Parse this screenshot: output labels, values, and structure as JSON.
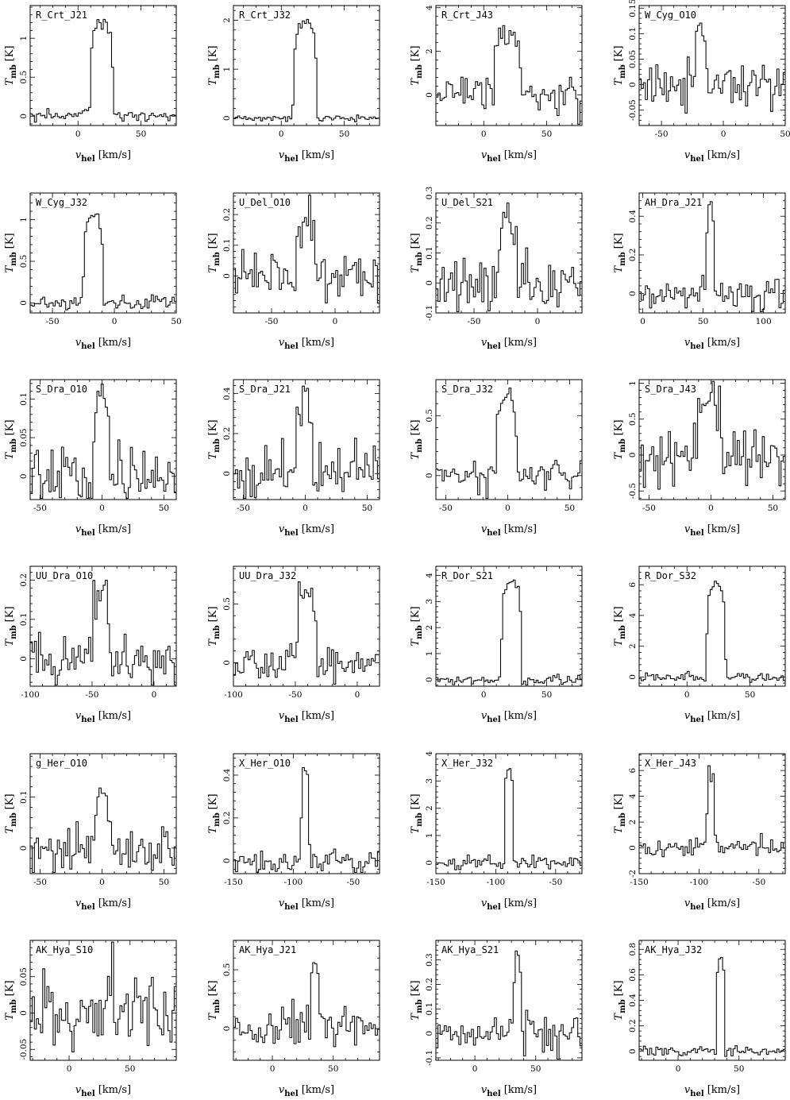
{
  "figure": {
    "xlabel": "v",
    "xlabel_sub": "hel",
    "xlabel_unit": "[km/s]",
    "ylabel": "T",
    "ylabel_sub": "mb",
    "ylabel_unit": "[K]"
  },
  "chart_data": [
    {
      "type": "line",
      "title": "R_Crt_J21",
      "xlim": [
        -38,
        78
      ],
      "ylim": [
        -0.12,
        1.42
      ],
      "xticks": [
        0,
        50
      ],
      "yticks": [
        0,
        0.5,
        1
      ],
      "profile": {
        "center": 19,
        "width": 16,
        "peak": 1.2,
        "rms": 0.04,
        "seed": 1
      }
    },
    {
      "type": "line",
      "title": "R_Crt_J32",
      "xlim": [
        -38,
        78
      ],
      "ylim": [
        -0.15,
        2.3
      ],
      "xticks": [
        0,
        50
      ],
      "yticks": [
        0,
        1,
        2
      ],
      "profile": {
        "center": 19,
        "width": 16,
        "peak": 2.0,
        "rms": 0.04,
        "seed": 2
      }
    },
    {
      "type": "line",
      "title": "R_Crt_J43",
      "xlim": [
        -38,
        78
      ],
      "ylim": [
        -1.4,
        4.1
      ],
      "xticks": [
        0,
        50
      ],
      "yticks": [
        0,
        2,
        4
      ],
      "profile": {
        "center": 19,
        "width": 18,
        "peak": 2.9,
        "rms": 0.45,
        "seed": 3
      }
    },
    {
      "type": "line",
      "title": "W_Cyg_O10",
      "xlim": [
        -68,
        50
      ],
      "ylim": [
        -0.08,
        0.155
      ],
      "xticks": [
        -50,
        0,
        50
      ],
      "yticks": [
        -0.05,
        0,
        0.05,
        0.1,
        0.15
      ],
      "profile": {
        "center": -18,
        "width": 9,
        "peak": 0.1,
        "rms": 0.022,
        "seed": 4
      }
    },
    {
      "type": "line",
      "title": "W_Cyg_J32",
      "xlim": [
        -68,
        50
      ],
      "ylim": [
        -0.12,
        1.32
      ],
      "xticks": [
        -50,
        0,
        50
      ],
      "yticks": [
        0,
        0.5,
        1
      ],
      "profile": {
        "center": -17,
        "width": 14,
        "peak": 1.05,
        "rms": 0.04,
        "seed": 5
      }
    },
    {
      "type": "line",
      "title": "U_Del_O10",
      "xlim": [
        -80,
        35
      ],
      "ylim": [
        -0.12,
        0.27
      ],
      "xticks": [
        -50,
        0
      ],
      "yticks": [
        0,
        0.1,
        0.2
      ],
      "profile": {
        "center": -23,
        "width": 13,
        "peak": 0.19,
        "rms": 0.04,
        "seed": 6
      }
    },
    {
      "type": "line",
      "title": "U_Del_S21",
      "xlim": [
        -80,
        35
      ],
      "ylim": [
        -0.1,
        0.3
      ],
      "xticks": [
        -50,
        0
      ],
      "yticks": [
        -0.1,
        0,
        0.1,
        0.2,
        0.3
      ],
      "profile": {
        "center": -23,
        "width": 13,
        "peak": 0.22,
        "rms": 0.045,
        "seed": 7
      }
    },
    {
      "type": "line",
      "title": "AH_Dra_J21",
      "xlim": [
        -3,
        118
      ],
      "ylim": [
        -0.1,
        0.52
      ],
      "xticks": [
        0,
        50,
        100
      ],
      "yticks": [
        0,
        0.2,
        0.4
      ],
      "profile": {
        "center": 56,
        "width": 6,
        "peak": 0.42,
        "rms": 0.045,
        "seed": 8
      }
    },
    {
      "type": "line",
      "title": "S_Dra_O10",
      "xlim": [
        -58,
        60
      ],
      "ylim": [
        -0.03,
        0.125
      ],
      "xticks": [
        -50,
        0,
        50
      ],
      "yticks": [
        0,
        0.05,
        0.1
      ],
      "profile": {
        "center": -1,
        "width": 12,
        "peak": 0.09,
        "rms": 0.022,
        "seed": 9
      }
    },
    {
      "type": "line",
      "title": "S_Dra_J21",
      "xlim": [
        -58,
        60
      ],
      "ylim": [
        -0.13,
        0.47
      ],
      "xticks": [
        -50,
        0,
        50
      ],
      "yticks": [
        0,
        0.2,
        0.4
      ],
      "profile": {
        "center": -1,
        "width": 12,
        "peak": 0.33,
        "rms": 0.07,
        "seed": 10
      }
    },
    {
      "type": "line",
      "title": "S_Dra_J32",
      "xlim": [
        -58,
        60
      ],
      "ylim": [
        -0.2,
        0.8
      ],
      "xticks": [
        -50,
        0,
        50
      ],
      "yticks": [
        0,
        0.5
      ],
      "profile": {
        "center": -1,
        "width": 14,
        "peak": 0.62,
        "rms": 0.07,
        "seed": 11
      }
    },
    {
      "type": "line",
      "title": "S_Dra_J43",
      "xlim": [
        -58,
        60
      ],
      "ylim": [
        -0.62,
        1.05
      ],
      "xticks": [
        -50,
        0,
        50
      ],
      "yticks": [
        -0.5,
        0,
        0.5,
        1
      ],
      "profile": {
        "center": -1,
        "width": 16,
        "peak": 0.78,
        "rms": 0.18,
        "seed": 12
      }
    },
    {
      "type": "line",
      "title": "UU_Dra_O10",
      "xlim": [
        -100,
        18
      ],
      "ylim": [
        -0.07,
        0.235
      ],
      "xticks": [
        -100,
        -50,
        0
      ],
      "yticks": [
        0,
        0.1,
        0.2
      ],
      "profile": {
        "center": -43,
        "width": 12,
        "peak": 0.17,
        "rms": 0.03,
        "seed": 13
      }
    },
    {
      "type": "line",
      "title": "UU_Dra_J32",
      "xlim": [
        -100,
        18
      ],
      "ylim": [
        -0.2,
        0.82
      ],
      "xticks": [
        -100,
        -50,
        0
      ],
      "yticks": [
        0,
        0.5
      ],
      "profile": {
        "center": -41,
        "width": 14,
        "peak": 0.6,
        "rms": 0.08,
        "seed": 14
      }
    },
    {
      "type": "line",
      "title": "R_Dor_S21",
      "xlim": [
        -38,
        78
      ],
      "ylim": [
        -0.25,
        4.35
      ],
      "xticks": [
        0,
        50
      ],
      "yticks": [
        0,
        1,
        2,
        3,
        4
      ],
      "profile": {
        "center": 22,
        "width": 14,
        "peak": 3.8,
        "rms": 0.08,
        "seed": 15
      }
    },
    {
      "type": "line",
      "title": "R_Dor_S32",
      "xlim": [
        -38,
        78
      ],
      "ylim": [
        -0.6,
        7.2
      ],
      "xticks": [
        0,
        50
      ],
      "yticks": [
        0,
        2,
        4,
        6
      ],
      "profile": {
        "center": 23,
        "width": 13,
        "peak": 6.1,
        "rms": 0.15,
        "seed": 16
      }
    },
    {
      "type": "line",
      "title": "g_Her_O10",
      "xlim": [
        -58,
        60
      ],
      "ylim": [
        -0.05,
        0.185
      ],
      "xticks": [
        -50,
        0,
        50
      ],
      "yticks": [
        0,
        0.1
      ],
      "profile": {
        "center": 1,
        "width": 10,
        "peak": 0.13,
        "rms": 0.025,
        "seed": 17
      }
    },
    {
      "type": "line",
      "title": "X_Her_O10",
      "xlim": [
        -150,
        -28
      ],
      "ylim": [
        -0.06,
        0.5
      ],
      "xticks": [
        -150,
        -100,
        -50
      ],
      "yticks": [
        0,
        0.2,
        0.4
      ],
      "profile": {
        "center": -90,
        "width": 6,
        "peak": 0.44,
        "rms": 0.025,
        "seed": 18
      }
    },
    {
      "type": "line",
      "title": "X_Her_J32",
      "xlim": [
        -150,
        -28
      ],
      "ylim": [
        -0.4,
        4.0
      ],
      "xticks": [
        -150,
        -100,
        -50
      ],
      "yticks": [
        0,
        1,
        2,
        3,
        4
      ],
      "profile": {
        "center": -89,
        "width": 6,
        "peak": 3.5,
        "rms": 0.13,
        "seed": 19
      }
    },
    {
      "type": "line",
      "title": "X_Her_J43",
      "xlim": [
        -150,
        -28
      ],
      "ylim": [
        -2.0,
        7.3
      ],
      "xticks": [
        -150,
        -100,
        -50
      ],
      "yticks": [
        -2,
        0,
        2,
        4,
        6
      ],
      "profile": {
        "center": -90,
        "width": 6,
        "peak": 6.0,
        "rms": 0.4,
        "seed": 20
      }
    },
    {
      "type": "line",
      "title": "AK_Hya_S10",
      "xlim": [
        -32,
        88
      ],
      "ylim": [
        -0.065,
        0.1
      ],
      "xticks": [
        0,
        50
      ],
      "yticks": [
        -0.05,
        0,
        0.05
      ],
      "profile": {
        "center": 35,
        "width": 6,
        "peak": 0.05,
        "rms": 0.028,
        "seed": 21
      }
    },
    {
      "type": "line",
      "title": "AK_Hya_J21",
      "xlim": [
        -32,
        88
      ],
      "ylim": [
        -0.27,
        0.75
      ],
      "xticks": [
        0,
        50
      ],
      "yticks": [
        0,
        0.5
      ],
      "profile": {
        "center": 35,
        "width": 6,
        "peak": 0.58,
        "rms": 0.08,
        "seed": 22
      }
    },
    {
      "type": "line",
      "title": "AK_Hya_S21",
      "xlim": [
        -32,
        88
      ],
      "ylim": [
        -0.11,
        0.38
      ],
      "xticks": [
        0,
        50
      ],
      "yticks": [
        -0.1,
        0,
        0.1,
        0.2,
        0.3
      ],
      "profile": {
        "center": 35,
        "width": 6,
        "peak": 0.32,
        "rms": 0.035,
        "seed": 23
      }
    },
    {
      "type": "line",
      "title": "AK_Hya_J32",
      "xlim": [
        -32,
        88
      ],
      "ylim": [
        -0.07,
        0.87
      ],
      "xticks": [
        0,
        50
      ],
      "yticks": [
        0,
        0.2,
        0.4,
        0.6,
        0.8
      ],
      "profile": {
        "center": 35,
        "width": 6,
        "peak": 0.72,
        "rms": 0.025,
        "seed": 24
      }
    }
  ]
}
